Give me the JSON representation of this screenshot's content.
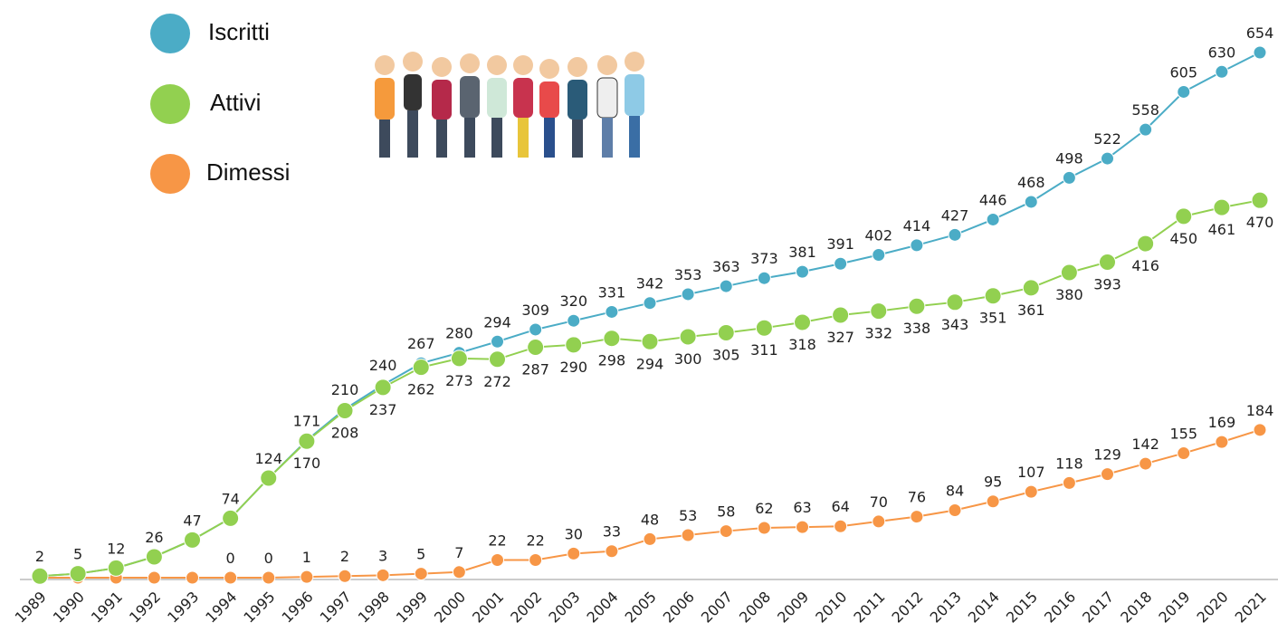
{
  "chart_data": {
    "type": "line",
    "categories": [
      "1989",
      "1990",
      "1991",
      "1992",
      "1993",
      "1994",
      "1995",
      "1996",
      "1997",
      "1998",
      "1999",
      "2000",
      "2001",
      "2002",
      "2003",
      "2004",
      "2005",
      "2006",
      "2007",
      "2008",
      "2009",
      "2010",
      "2011",
      "2012",
      "2013",
      "2014",
      "2015",
      "2016",
      "2017",
      "2018",
      "2019",
      "2020",
      "2021"
    ],
    "ylim": [
      0,
      654
    ],
    "series": [
      {
        "name": "Iscritti",
        "color": "#4bacc6",
        "values": [
          2,
          5,
          12,
          26,
          47,
          74,
          124,
          171,
          210,
          240,
          267,
          280,
          294,
          309,
          320,
          331,
          342,
          353,
          363,
          373,
          381,
          391,
          402,
          414,
          427,
          446,
          468,
          498,
          522,
          558,
          605,
          630,
          654
        ]
      },
      {
        "name": "Attivi",
        "color": "#92d050",
        "values": [
          2,
          5,
          12,
          26,
          47,
          74,
          124,
          170,
          208,
          237,
          262,
          273,
          272,
          287,
          290,
          298,
          294,
          300,
          305,
          311,
          318,
          327,
          332,
          338,
          343,
          351,
          361,
          380,
          393,
          416,
          450,
          461,
          470
        ],
        "value_labels": [
          null,
          null,
          null,
          null,
          null,
          null,
          null,
          "170",
          "208",
          "237",
          "262",
          "273",
          "272",
          "287",
          "290",
          "298",
          "294",
          "300",
          "305",
          "311",
          "318",
          "327",
          "332",
          "338",
          "343",
          "351",
          "361",
          "380",
          "393",
          "416",
          "450",
          "461",
          "470"
        ]
      },
      {
        "name": "Dimessi",
        "color": "#f79646",
        "values": [
          0,
          0,
          0,
          0,
          0,
          0,
          0,
          1,
          2,
          3,
          5,
          7,
          22,
          22,
          30,
          33,
          48,
          53,
          58,
          62,
          63,
          64,
          70,
          76,
          84,
          95,
          107,
          118,
          129,
          142,
          155,
          169,
          184
        ],
        "value_labels": [
          null,
          null,
          null,
          null,
          null,
          "0",
          "0",
          "1",
          "2",
          "3",
          "5",
          "7",
          "22",
          "22",
          "30",
          "33",
          "48",
          "53",
          "58",
          "62",
          "63",
          "64",
          "70",
          "76",
          "84",
          "95",
          "107",
          "118",
          "129",
          "142",
          "155",
          "169",
          "184"
        ]
      }
    ]
  }
}
